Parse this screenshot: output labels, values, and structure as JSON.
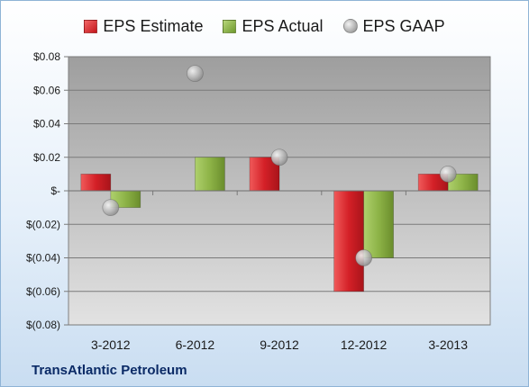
{
  "chart_data": {
    "type": "bar",
    "categories": [
      "3-2012",
      "6-2012",
      "9-2012",
      "12-2012",
      "3-2013"
    ],
    "series": [
      {
        "name": "EPS Estimate",
        "values": [
          0.01,
          null,
          0.02,
          -0.06,
          0.01
        ],
        "color": "#d42027"
      },
      {
        "name": "EPS Actual",
        "values": [
          -0.01,
          0.02,
          null,
          -0.04,
          0.01
        ],
        "color": "#8db347"
      },
      {
        "name": "EPS GAAP",
        "values": [
          -0.01,
          0.07,
          0.02,
          -0.04,
          0.01
        ],
        "color": "#b3b3b3",
        "marker": "circle"
      }
    ],
    "ylim": [
      -0.08,
      0.08
    ],
    "yticks": [
      0.08,
      0.06,
      0.04,
      0.02,
      0,
      -0.02,
      -0.04,
      -0.06,
      -0.08
    ],
    "ytick_labels": [
      "$0.08",
      "$0.06",
      "$0.04",
      "$0.02",
      "$-",
      "$(0.02)",
      "$(0.04)",
      "$(0.06)",
      "$(0.08)"
    ],
    "grid": true,
    "legend_position": "top"
  },
  "footer": {
    "company": "TransAtlantic Petroleum"
  }
}
